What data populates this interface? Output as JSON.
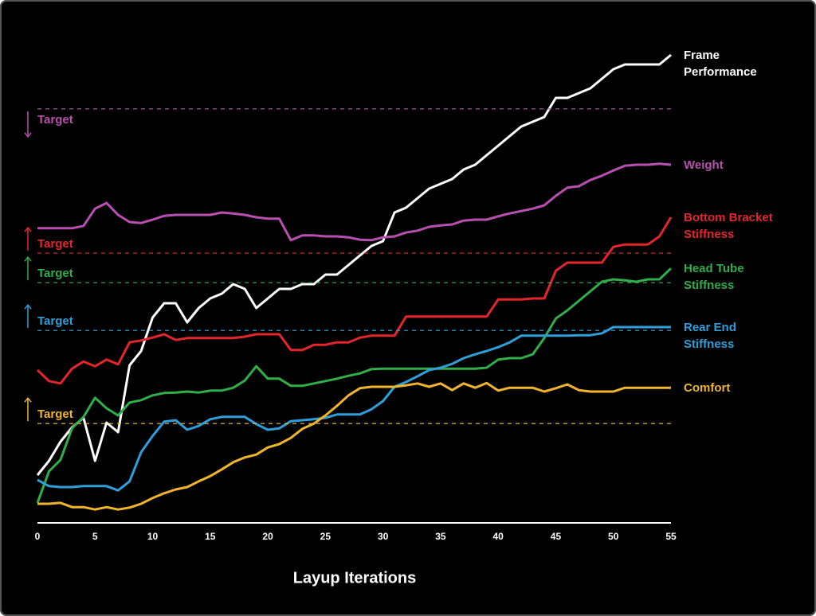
{
  "chart_data": {
    "type": "line",
    "x_label": "Layup Iterations",
    "x": [
      0,
      1,
      2,
      3,
      4,
      5,
      6,
      7,
      8,
      9,
      10,
      11,
      12,
      13,
      14,
      15,
      16,
      17,
      18,
      19,
      20,
      21,
      22,
      23,
      24,
      25,
      26,
      27,
      28,
      29,
      30,
      31,
      32,
      33,
      34,
      35,
      36,
      37,
      38,
      39,
      40,
      41,
      42,
      43,
      44,
      45,
      46,
      47,
      48,
      49,
      50,
      51,
      52,
      53,
      54,
      55
    ],
    "xlim": [
      0,
      55
    ],
    "xticks": [
      0,
      5,
      10,
      15,
      20,
      25,
      30,
      35,
      40,
      45,
      50,
      55
    ],
    "ylim": [
      0,
      100
    ],
    "series": [
      {
        "name": "Frame Performance",
        "color": "#ffffff",
        "values": [
          10,
          13,
          17,
          20,
          22,
          13,
          21,
          19,
          33,
          36,
          43,
          46,
          46,
          42,
          45,
          47,
          48,
          50,
          49,
          45,
          47,
          49,
          49,
          50,
          50,
          52,
          52,
          54,
          56,
          58,
          59,
          65,
          66,
          68,
          70,
          71,
          72,
          74,
          75,
          77,
          79,
          81,
          83,
          84,
          85,
          89,
          89,
          90,
          91,
          93,
          95,
          96,
          96,
          96,
          96,
          98
        ]
      },
      {
        "name": "Weight",
        "color": "#b94fb0",
        "target": 86.7,
        "target_label": "Target",
        "target_direction": "down",
        "values": [
          61.7,
          61.7,
          61.7,
          61.7,
          62.2,
          65.8,
          67,
          64.5,
          63,
          62.8,
          63.5,
          64.3,
          64.5,
          64.5,
          64.5,
          64.5,
          65,
          64.8,
          64.5,
          64,
          63.7,
          63.7,
          59.2,
          60.2,
          60.2,
          60,
          60,
          59.8,
          59.3,
          59.2,
          59.8,
          60,
          60.8,
          61.2,
          62,
          62.3,
          62.5,
          63.3,
          63.5,
          63.5,
          64.2,
          64.8,
          65.3,
          65.8,
          66.5,
          68.5,
          70.2,
          70.5,
          71.8,
          72.7,
          73.8,
          74.8,
          75,
          75,
          75.2,
          75
        ]
      },
      {
        "name": "Bottom Bracket Stiffness",
        "color": "#e3262b",
        "target": 56.5,
        "target_label": "Target",
        "target_direction": "up",
        "values": [
          32,
          29.7,
          29.2,
          32.3,
          33.8,
          32.8,
          34.2,
          33.2,
          37.8,
          38.2,
          38.8,
          39.5,
          38.3,
          38.7,
          38.7,
          38.7,
          38.7,
          38.7,
          39,
          39.5,
          39.5,
          39.5,
          36.2,
          36.2,
          37.3,
          37.3,
          37.8,
          37.8,
          38.8,
          39.2,
          39.2,
          39.2,
          43.2,
          43.2,
          43.2,
          43.2,
          43.2,
          43.2,
          43.2,
          43.2,
          46.8,
          46.8,
          46.8,
          47,
          47,
          52.8,
          54.5,
          54.5,
          54.5,
          54.5,
          57.8,
          58.3,
          58.3,
          58.3,
          60,
          64
        ]
      },
      {
        "name": "Head Tube Stiffness",
        "color": "#2fae4a",
        "target": 50.3,
        "target_label": "Target",
        "target_direction": "up",
        "values": [
          4.2,
          10.8,
          13.2,
          19.8,
          22.2,
          26.2,
          24,
          22.5,
          25.2,
          25.7,
          26.7,
          27.2,
          27.3,
          27.5,
          27.3,
          27.7,
          27.7,
          28.3,
          29.8,
          32.8,
          30.2,
          30.2,
          28.7,
          28.7,
          29.2,
          29.7,
          30.2,
          30.8,
          31.3,
          32.2,
          32.3,
          32.3,
          32.3,
          32.3,
          32.3,
          32.3,
          32.3,
          32.3,
          32.3,
          32.5,
          34.2,
          34.5,
          34.5,
          35.3,
          38.7,
          42.8,
          44.5,
          46.5,
          48.5,
          50.5,
          51,
          50.8,
          50.5,
          51,
          51,
          53.3
        ]
      },
      {
        "name": "Rear End Stiffness",
        "color": "#2e9fd9",
        "target": 40.3,
        "target_label": "Target",
        "target_direction": "up",
        "values": [
          9,
          7.7,
          7.5,
          7.5,
          7.7,
          7.7,
          7.7,
          6.8,
          8.7,
          14.8,
          18.2,
          21.2,
          21.5,
          19.5,
          20.3,
          21.7,
          22.2,
          22.2,
          22.2,
          20.7,
          19.5,
          19.8,
          21.3,
          21.5,
          21.7,
          22,
          22.7,
          22.7,
          22.7,
          23.8,
          25.5,
          28.5,
          29.5,
          30.7,
          32,
          32.5,
          33.3,
          34.5,
          35.3,
          36,
          36.8,
          37.8,
          39.2,
          39.2,
          39.2,
          39.2,
          39.2,
          39.3,
          39.3,
          39.7,
          41,
          41,
          41,
          41,
          41,
          41
        ]
      },
      {
        "name": "Comfort",
        "color": "#f1b52b",
        "target": 20.8,
        "target_label": "Target",
        "target_direction": "up",
        "values": [
          4,
          4,
          4.2,
          3.3,
          3.3,
          2.8,
          3.3,
          2.8,
          3.2,
          4,
          5.2,
          6.2,
          7,
          7.5,
          8.7,
          9.8,
          11.2,
          12.7,
          13.7,
          14.3,
          15.8,
          16.5,
          17.8,
          19.7,
          20.8,
          22.5,
          24.5,
          26.7,
          28.2,
          28.5,
          28.5,
          28.5,
          28.8,
          29.2,
          28.5,
          29.2,
          27.8,
          29.2,
          28.3,
          29.3,
          27.7,
          28.3,
          28.3,
          28.3,
          27.5,
          28.2,
          29,
          27.8,
          27.5,
          27.5,
          27.5,
          28.3,
          28.3,
          28.3,
          28.3,
          28.3
        ]
      }
    ]
  }
}
